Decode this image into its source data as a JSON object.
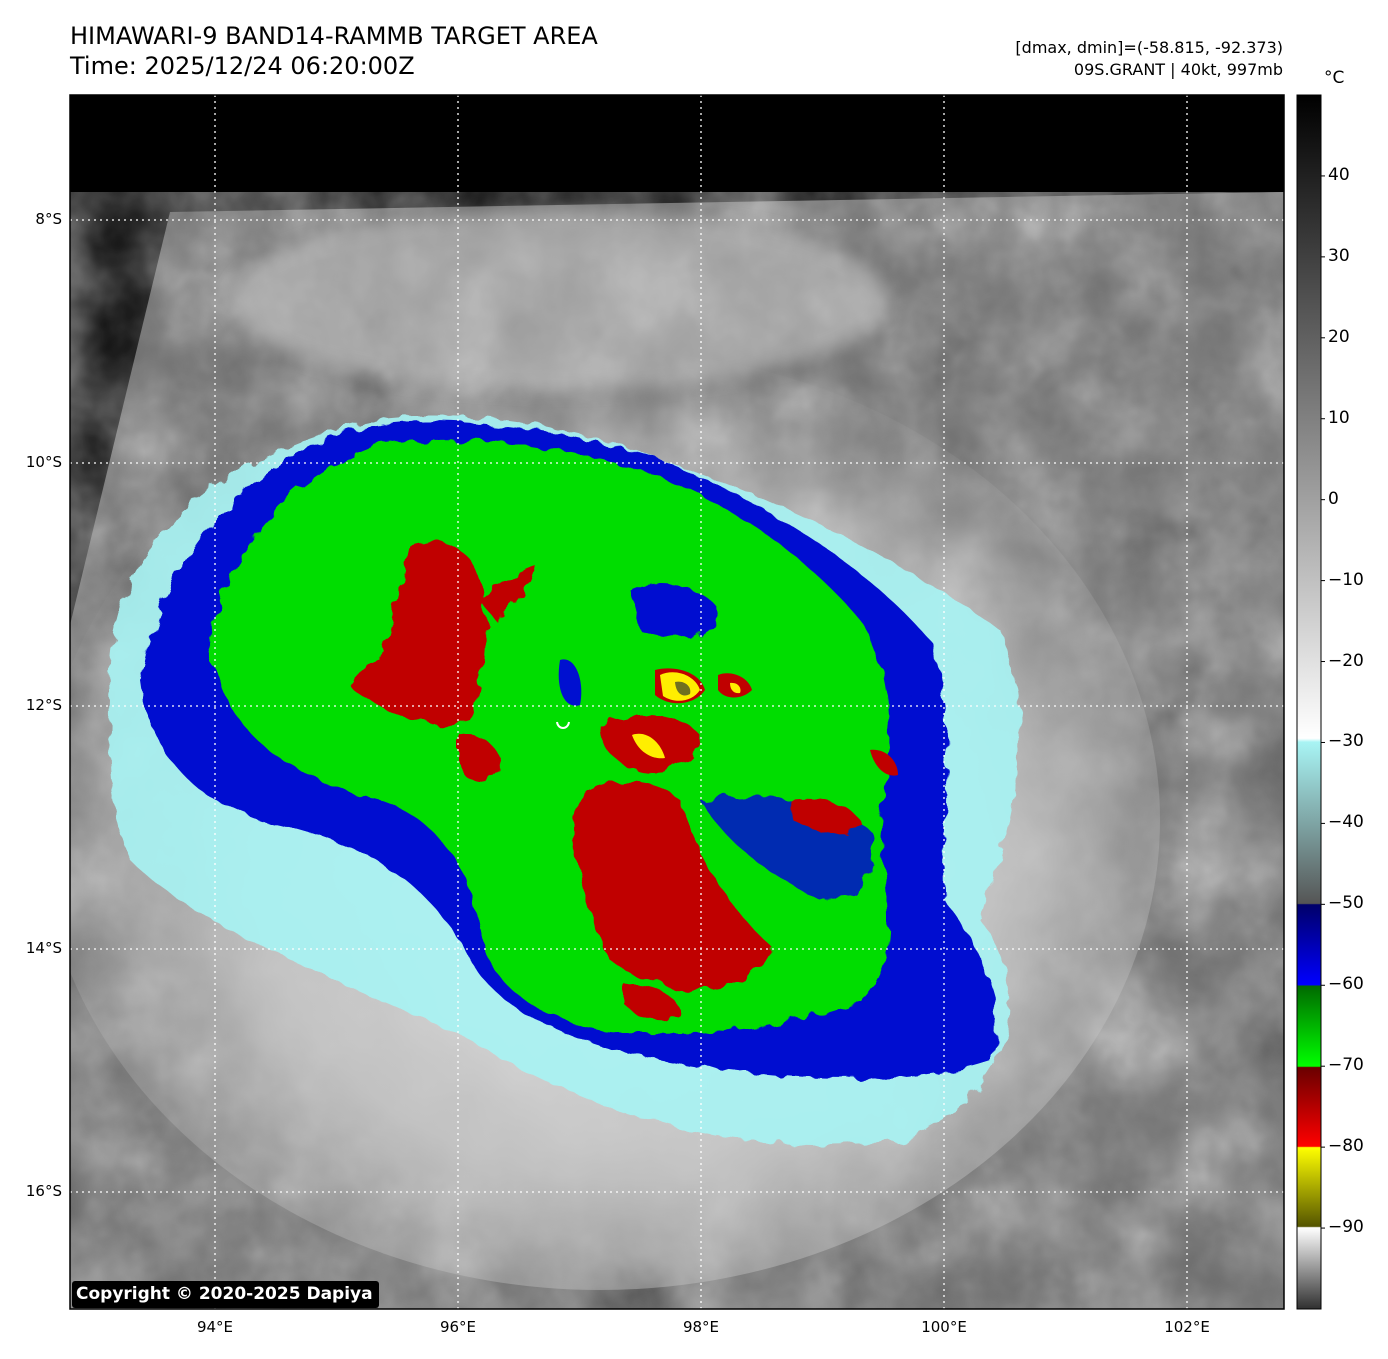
{
  "header": {
    "title": "HIMAWARI-9 BAND14-RAMMB TARGET AREA",
    "time": "Time: 2025/12/24 06:20:00Z",
    "range": "[dmax, dmin]=(-58.815, -92.373)",
    "storm": "09S.GRANT | 40kt, 997mb"
  },
  "map": {
    "lat_ticks": [
      {
        "label": "8°S",
        "lat": -8
      },
      {
        "label": "10°S",
        "lat": -10
      },
      {
        "label": "12°S",
        "lat": -12
      },
      {
        "label": "14°S",
        "lat": -14
      },
      {
        "label": "16°S",
        "lat": -16
      }
    ],
    "lon_ticks": [
      {
        "label": "94°E",
        "lon": 94
      },
      {
        "label": "96°E",
        "lon": 96
      },
      {
        "label": "98°E",
        "lon": 98
      },
      {
        "label": "100°E",
        "lon": 100
      },
      {
        "label": "102°E",
        "lon": 102
      }
    ]
  },
  "colorbar": {
    "unit": "°C",
    "ticks": [
      40,
      30,
      20,
      10,
      0,
      -10,
      -20,
      -30,
      -40,
      -50,
      -60,
      -70,
      -80,
      -90
    ],
    "range": [
      -100,
      50
    ]
  },
  "copyright": "Copyright © 2020-2025 Dapiya",
  "colors": {
    "blue": "#0010d0",
    "green": "#00dd00",
    "red": "#c00000",
    "yellow": "#ffee00",
    "cyan": "#a8f4f4"
  }
}
